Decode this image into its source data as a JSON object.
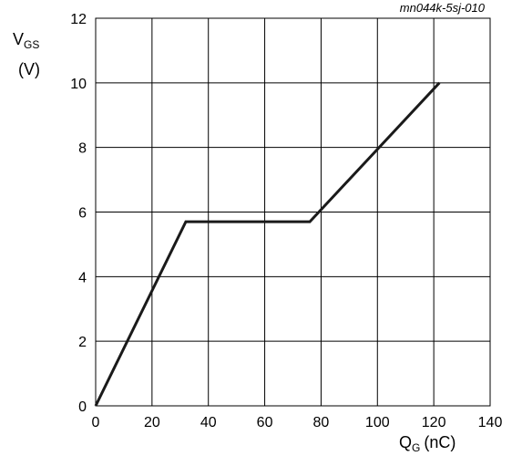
{
  "chart_data": {
    "type": "line",
    "figure_id": "mn044k-5sj-010",
    "ylabel": {
      "main": "V",
      "sub": "GS",
      "unit": "(V)"
    },
    "xlabel": {
      "main": "Q",
      "sub": "G",
      "unit": "(nC)"
    },
    "xlim": [
      0,
      140
    ],
    "ylim": [
      0,
      12
    ],
    "xticks": [
      0,
      20,
      40,
      60,
      80,
      100,
      120,
      140
    ],
    "yticks": [
      0,
      2,
      4,
      6,
      8,
      10,
      12
    ],
    "grid": true,
    "series": [
      {
        "points": [
          [
            0,
            0
          ],
          [
            32,
            5.7
          ],
          [
            76,
            5.7
          ],
          [
            122,
            10
          ]
        ],
        "color": "#1a1a1a"
      }
    ]
  }
}
